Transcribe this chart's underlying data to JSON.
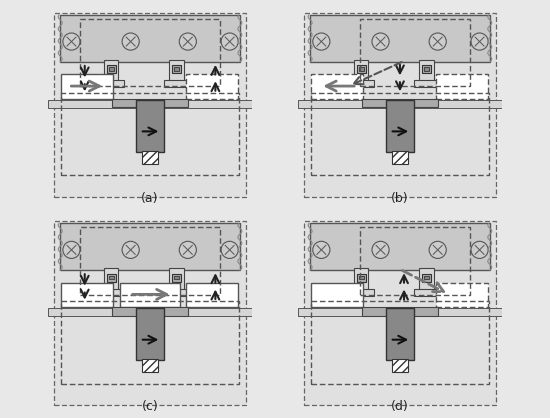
{
  "fig_width": 5.5,
  "fig_height": 4.18,
  "dpi": 100,
  "bg_color": "#e8e8e8",
  "label_fontsize": 9,
  "subfigs": [
    "(a)",
    "(b)",
    "(c)",
    "(d)"
  ]
}
